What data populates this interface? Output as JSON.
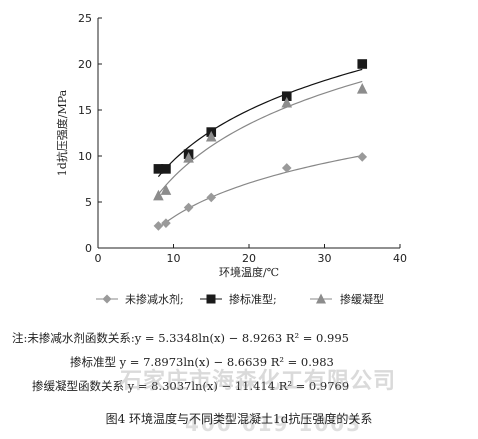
{
  "chart_data": {
    "type": "scatter",
    "xlabel": "环境温度/℃",
    "ylabel": "1d抗压强度/MPa",
    "xlim": [
      0,
      40
    ],
    "ylim": [
      0,
      25
    ],
    "xticks": [
      "0",
      "10",
      "20",
      "30",
      "40"
    ],
    "yticks": [
      "0",
      "5",
      "10",
      "15",
      "20",
      "25"
    ],
    "grid": false,
    "legend_position": "bottom",
    "series": [
      {
        "name": "未掺减水剂",
        "marker": "diamond",
        "color": "#9a9a9a",
        "points": [
          [
            8,
            2.4
          ],
          [
            9,
            2.7
          ],
          [
            12,
            4.4
          ],
          [
            15,
            5.5
          ],
          [
            25,
            8.7
          ],
          [
            35,
            9.9
          ]
        ],
        "fit": {
          "a": 5.3348,
          "b": -8.9263
        }
      },
      {
        "name": "掺标准型",
        "marker": "square",
        "color": "#1a1a1a",
        "points": [
          [
            8,
            8.6
          ],
          [
            9,
            8.6
          ],
          [
            12,
            10.2
          ],
          [
            15,
            12.6
          ],
          [
            25,
            16.5
          ],
          [
            35,
            20.0
          ]
        ],
        "fit": {
          "a": 7.8973,
          "b": -8.6639
        }
      },
      {
        "name": "掺缓凝型",
        "marker": "triangle",
        "color": "#8c8c8c",
        "points": [
          [
            8,
            5.7
          ],
          [
            9,
            6.3
          ],
          [
            12,
            9.8
          ],
          [
            15,
            12.1
          ],
          [
            25,
            15.8
          ],
          [
            35,
            17.3
          ]
        ],
        "fit": {
          "a": 8.3037,
          "b": -11.414
        }
      }
    ]
  },
  "notes": {
    "line1": "注:未掺减水剂函数关系:y = 5.3348ln(x) − 8.9263    R² = 0.995",
    "line2": "掺标准型 y = 7.8973ln(x) − 8.6639    R² = 0.983",
    "line3": "掺缓凝型函数关系 y = 8.3037ln(x) − 11.414    R² = 0.9769"
  },
  "caption": "图4   环境温度与不同类型混凝土1d抗压强度的关系",
  "watermark": {
    "line1": "石家庄市海森化工有限公司",
    "line2": "400 619 1003"
  }
}
